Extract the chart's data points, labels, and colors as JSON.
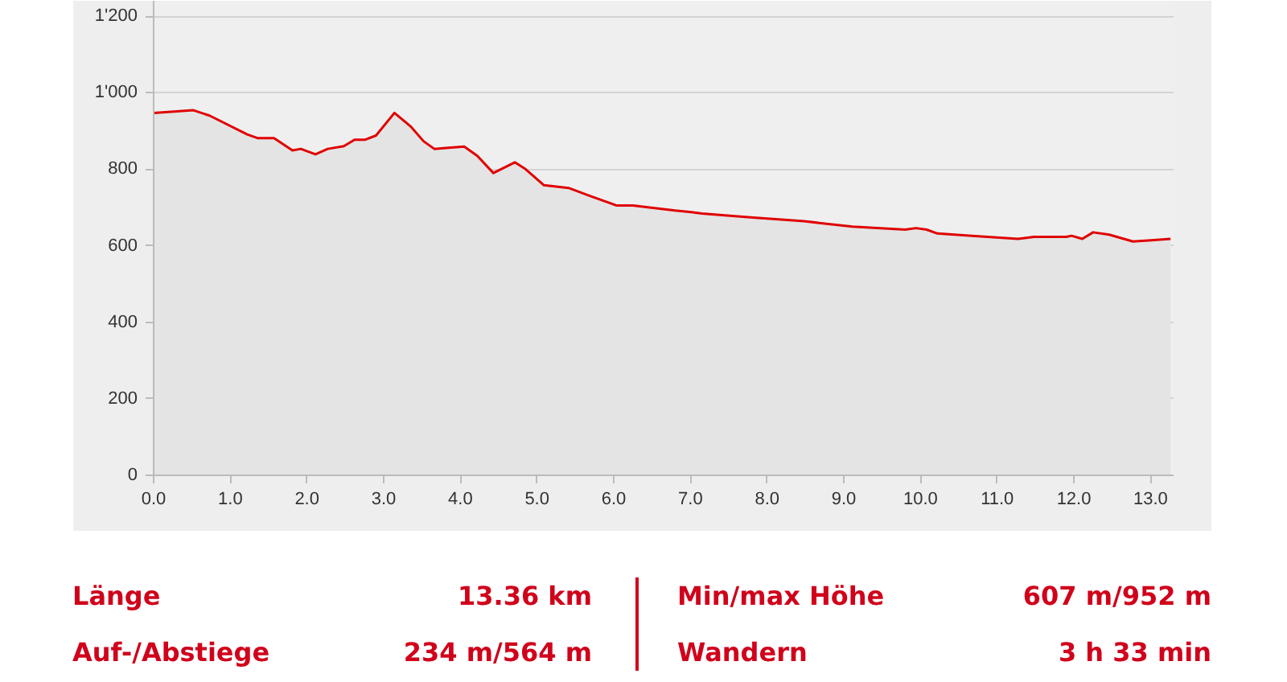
{
  "chart_data": {
    "type": "area",
    "x": [
      0,
      0.52,
      0.73,
      1.22,
      1.36,
      1.57,
      1.81,
      1.92,
      2.11,
      2.27,
      2.48,
      2.62,
      2.76,
      2.9,
      3.14,
      3.35,
      3.52,
      3.66,
      3.84,
      4.05,
      4.22,
      4.43,
      4.71,
      4.85,
      5.09,
      5.41,
      5.69,
      6.04,
      6.25,
      6.38,
      6.8,
      7.01,
      7.15,
      7.78,
      8.48,
      9.11,
      9.8,
      9.94,
      10.08,
      10.22,
      10.71,
      11.27,
      11.48,
      11.9,
      11.97,
      12.11,
      12.25,
      12.46,
      12.77,
      13.01,
      13.26
    ],
    "series": [
      {
        "color": "#e00000",
        "values": [
          947,
          954,
          940,
          891,
          881,
          881,
          849,
          853,
          839,
          853,
          860,
          877,
          877,
          888,
          947,
          912,
          873,
          853,
          856,
          859,
          835,
          790,
          818,
          800,
          758,
          751,
          730,
          705,
          705,
          702,
          692,
          688,
          684,
          674,
          664,
          650,
          642,
          646,
          642,
          632,
          625,
          618,
          623,
          623,
          626,
          618,
          635,
          629,
          611,
          614,
          618
        ]
      }
    ],
    "xlim": [
      0,
      13.3
    ],
    "ylim": [
      0,
      1240
    ],
    "xticks": [
      {
        "value": 0,
        "label": "0.0"
      },
      {
        "value": 1,
        "label": "1.0"
      },
      {
        "value": 2,
        "label": "2.0"
      },
      {
        "value": 3,
        "label": "3.0"
      },
      {
        "value": 4,
        "label": "4.0"
      },
      {
        "value": 5,
        "label": "5.0"
      },
      {
        "value": 6,
        "label": "6.0"
      },
      {
        "value": 7,
        "label": "7.0"
      },
      {
        "value": 8,
        "label": "8.0"
      },
      {
        "value": 9,
        "label": "9.0"
      },
      {
        "value": 10,
        "label": "10.0"
      },
      {
        "value": 11,
        "label": "11.0"
      },
      {
        "value": 12,
        "label": "12.0"
      },
      {
        "value": 13,
        "label": "13.0"
      }
    ],
    "yticks": [
      0,
      200,
      400,
      600,
      800,
      {
        "value": 1000,
        "label": "1'000"
      },
      {
        "value": 1200,
        "label": "1'200"
      }
    ],
    "grid": "y",
    "annotations": [
      "Länge",
      "13.36 km",
      "Min/max Höhe",
      "607 m/952 m",
      "Auf-/Abstiege",
      "234 m/564 m",
      "Wandern",
      "3 h 33 min"
    ]
  }
}
